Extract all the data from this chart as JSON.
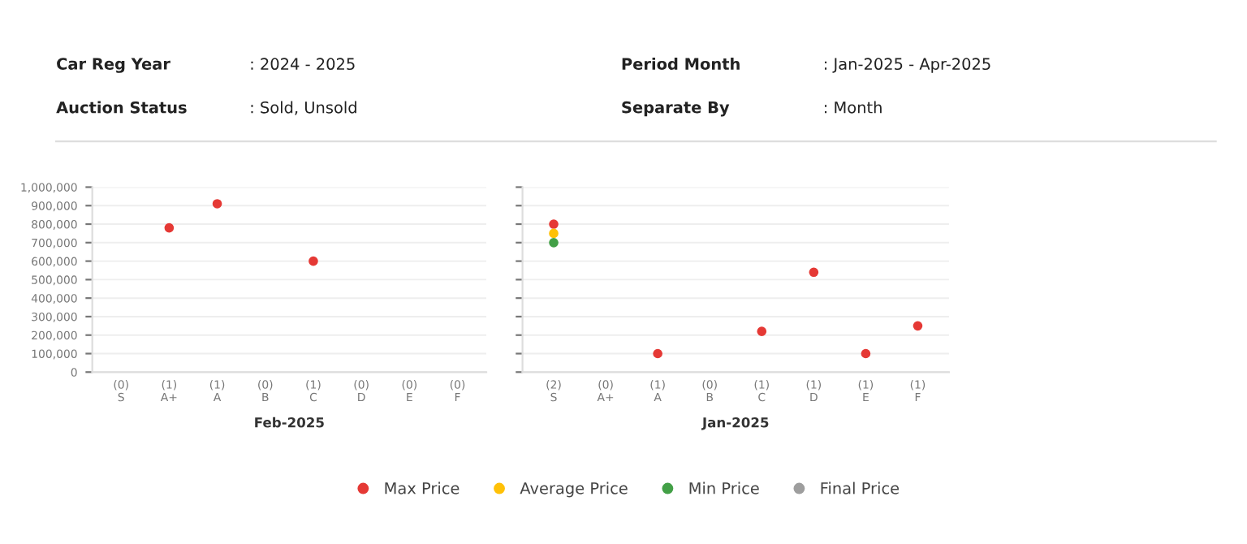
{
  "chart_data": [
    {
      "type": "scatter",
      "xlabel": "Feb-2025",
      "annotations": [
        "Car Reg Year",
        ": 2024 - 2025",
        "Period Month",
        ": Jan-2025 - Apr-2025",
        "Auction Status",
        ": Sold, Unsold",
        "Separate By",
        ": Month"
      ],
      "categories": [
        "(0)\nS",
        "(1)\nA+",
        "(1)\nA",
        "(0)\nB",
        "(1)\nC",
        "(0)\nD",
        "(0)\nE",
        "(0)\nF"
      ],
      "series": [
        {
          "name": "Max Price",
          "color": "#e53935",
          "values": [
            null,
            780000,
            910000,
            null,
            600000,
            null,
            null,
            null
          ]
        },
        {
          "name": "Average Price",
          "color": "#ffc107",
          "values": [
            null,
            null,
            null,
            null,
            null,
            null,
            null,
            null
          ]
        },
        {
          "name": "Min Price",
          "color": "#43a047",
          "values": [
            null,
            null,
            null,
            null,
            null,
            null,
            null,
            null
          ]
        },
        {
          "name": "Final Price",
          "color": "#9e9e9e",
          "values": [
            null,
            null,
            null,
            null,
            null,
            null,
            null,
            null
          ]
        }
      ],
      "ylim": [
        0,
        1000000
      ],
      "yticks": [
        {
          "value": 0,
          "label": "0"
        },
        {
          "value": 100000,
          "label": "100,000"
        },
        {
          "value": 200000,
          "label": "200,000"
        },
        {
          "value": 300000,
          "label": "300,000"
        },
        {
          "value": 400000,
          "label": "400,000"
        },
        {
          "value": 500000,
          "label": "500,000"
        },
        {
          "value": 600000,
          "label": "600,000"
        },
        {
          "value": 700000,
          "label": "700,000"
        },
        {
          "value": 800000,
          "label": "800,000"
        },
        {
          "value": 900000,
          "label": "900,000"
        },
        {
          "value": 1000000,
          "label": "1,000,000"
        }
      ],
      "grid": "y",
      "marker": "circle",
      "legend": "bottom"
    },
    {
      "type": "scatter",
      "xlabel": "Jan-2025",
      "categories": [
        "(2)\nS",
        "(0)\nA+",
        "(1)\nA",
        "(0)\nB",
        "(1)\nC",
        "(1)\nD",
        "(1)\nE",
        "(1)\nF"
      ],
      "series": [
        {
          "color": "#e53935",
          "values": [
            800000,
            null,
            100000,
            null,
            220000,
            540000,
            100000,
            250000
          ]
        },
        {
          "color": "#ffc107",
          "values": [
            750000,
            null,
            null,
            null,
            null,
            null,
            null,
            null
          ]
        },
        {
          "color": "#43a047",
          "values": [
            700000,
            null,
            null,
            null,
            null,
            null,
            null,
            null
          ]
        }
      ],
      "ylim": [
        0,
        1000000
      ],
      "yticks": [
        0,
        100000,
        200000,
        300000,
        400000,
        500000,
        600000,
        700000,
        800000,
        900000,
        1000000
      ],
      "tick_labels": "x",
      "grid": "y",
      "marker": "circle"
    }
  ]
}
